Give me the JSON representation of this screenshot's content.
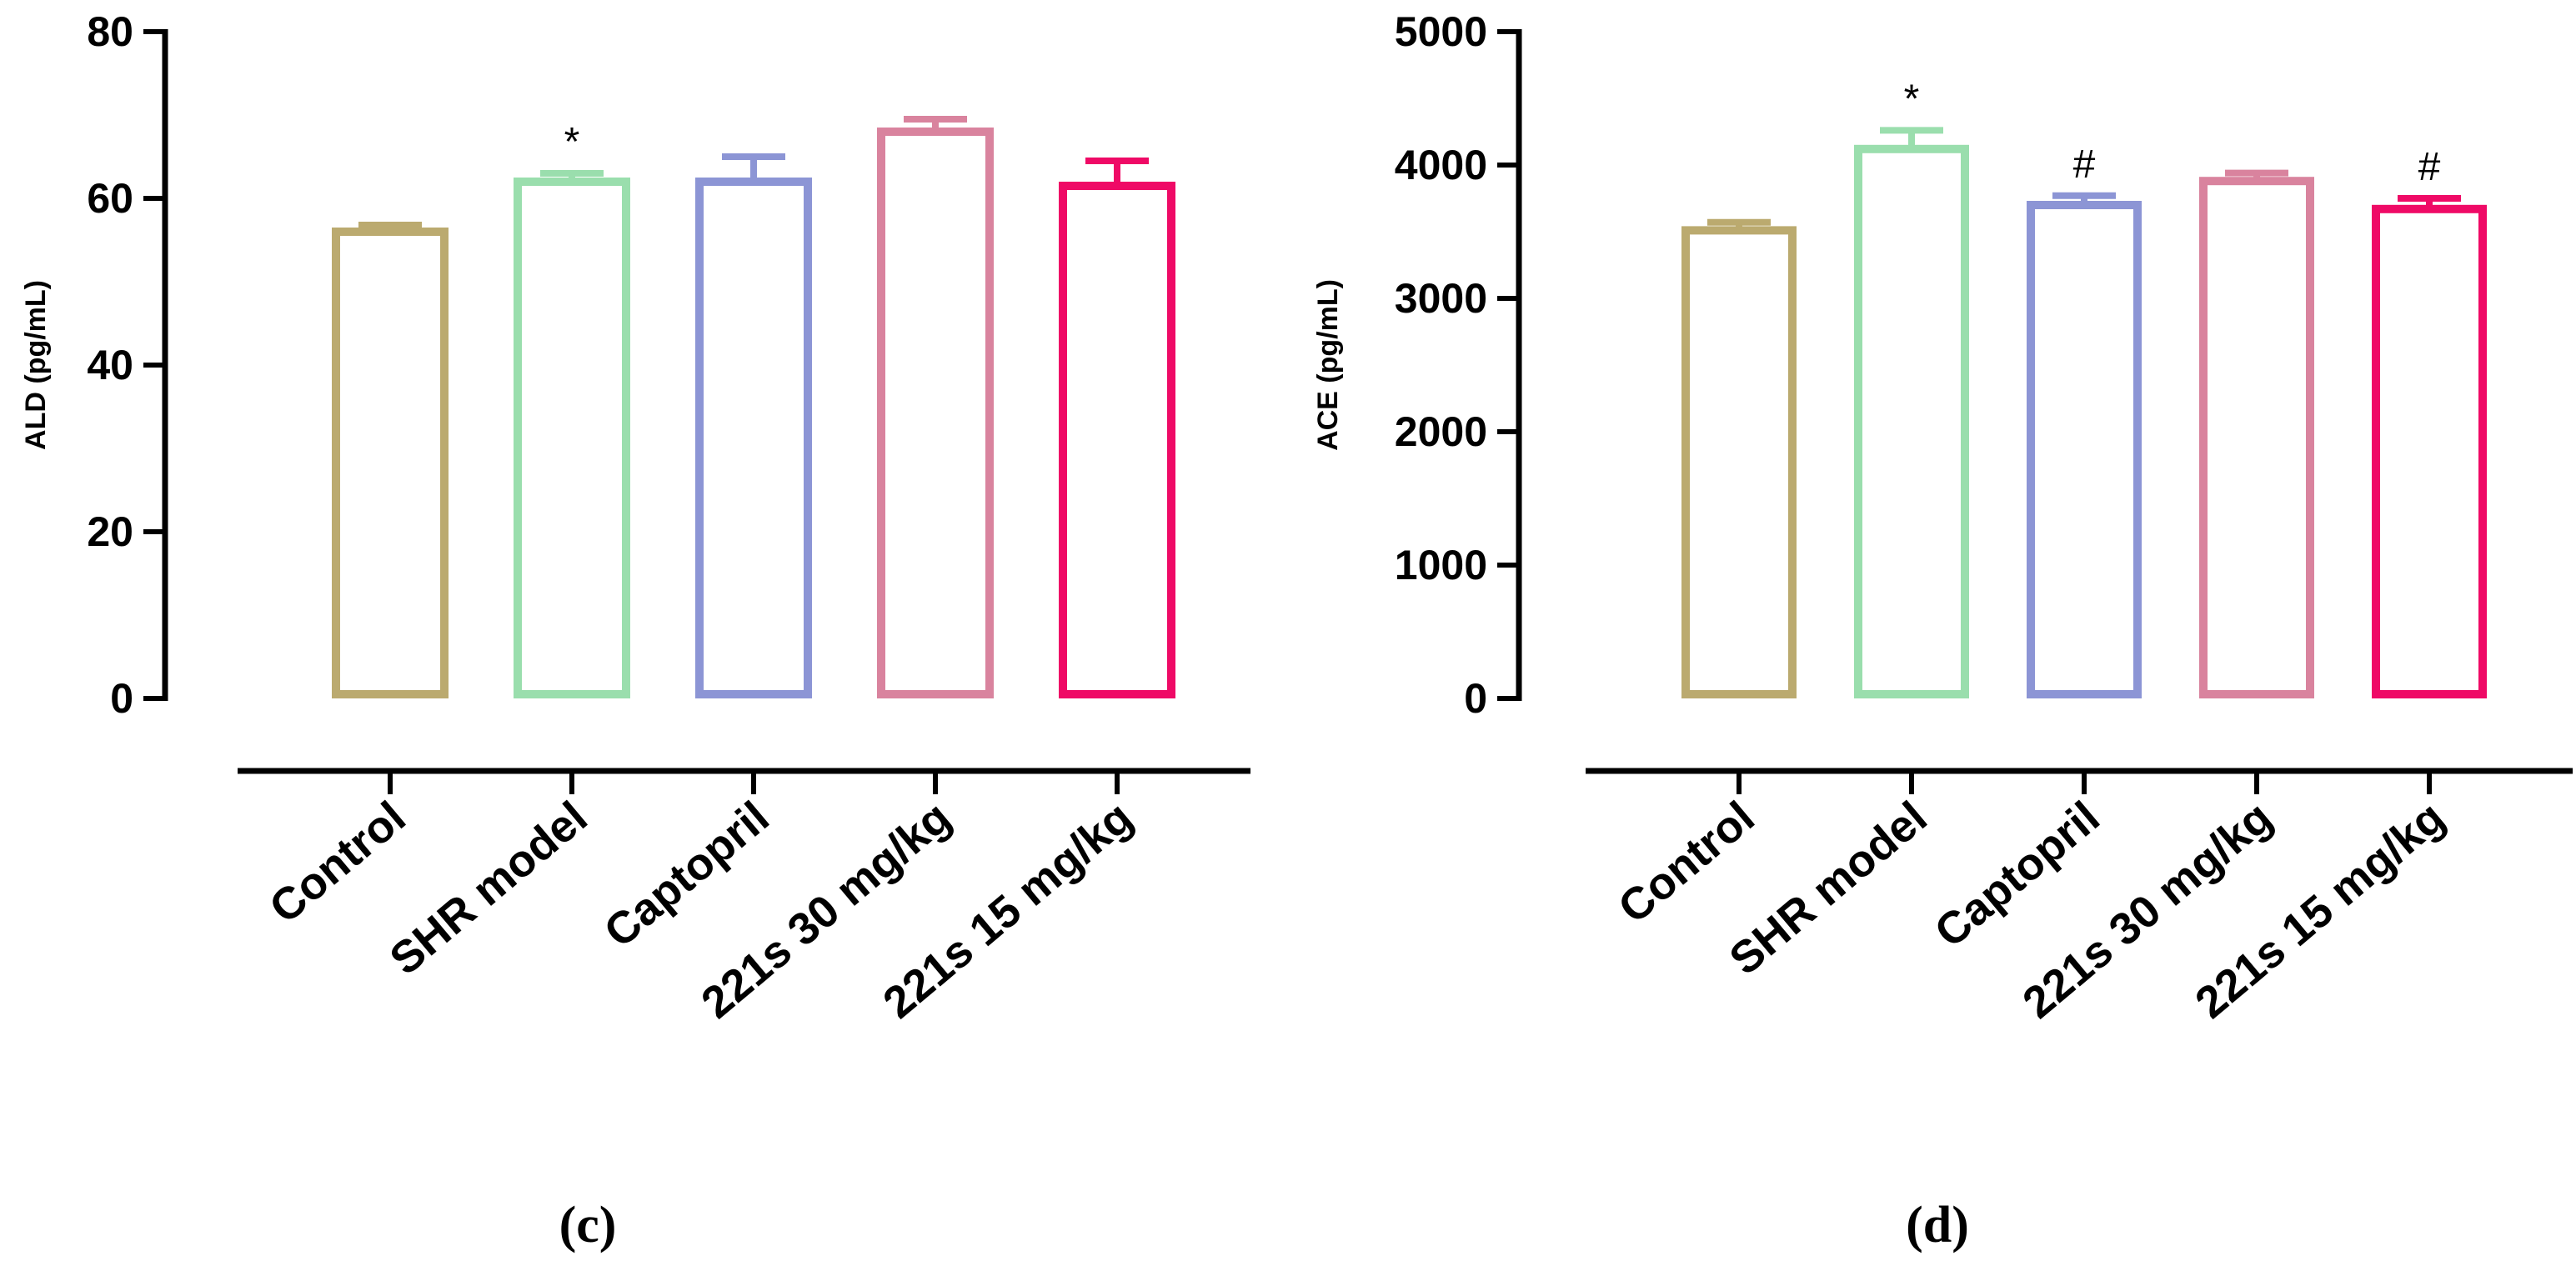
{
  "colors": {
    "control": "#BBAA6F",
    "shr_model": "#9ADEAD",
    "captopril": "#8C95D5",
    "dose_30": "#D9839E",
    "dose_15": "#EF0A66",
    "axis": "#000000"
  },
  "chart_data": [
    {
      "id": "c",
      "type": "bar",
      "panel_label": "(c)",
      "title": "",
      "xlabel": "",
      "ylabel": "ALD (pg/mL)",
      "ylim": [
        0,
        80
      ],
      "yticks": [
        "0",
        "20",
        "40",
        "60",
        "80"
      ],
      "categories": [
        "Control",
        "SHR model",
        "Captopril",
        "221s 30 mg/kg",
        "221s 15 mg/kg"
      ],
      "values": [
        56,
        62,
        62,
        68,
        61.5
      ],
      "error": [
        0.8,
        1.0,
        3.0,
        1.5,
        3.0
      ],
      "annotations": [
        "",
        "*",
        "",
        "",
        ""
      ],
      "legend": "none",
      "grid": false
    },
    {
      "id": "d",
      "type": "bar",
      "panel_label": "(d)",
      "title": "",
      "xlabel": "",
      "ylabel": "ACE (pg/mL)",
      "ylim": [
        0,
        5000
      ],
      "yticks": [
        "0",
        "1000",
        "2000",
        "3000",
        "4000",
        "5000"
      ],
      "categories": [
        "Control",
        "SHR model",
        "Captopril",
        "221s 30 mg/kg",
        "221s 15 mg/kg"
      ],
      "values": [
        3510,
        4120,
        3700,
        3880,
        3670
      ],
      "error": [
        60,
        140,
        70,
        60,
        80
      ],
      "annotations": [
        "",
        "*",
        "#",
        "",
        "#"
      ],
      "legend": "none",
      "grid": false
    }
  ]
}
